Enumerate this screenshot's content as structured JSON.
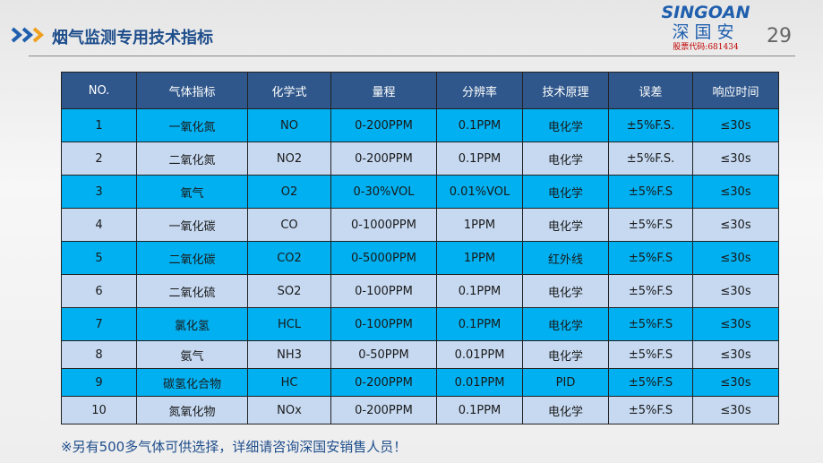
{
  "header": {
    "title": "烟气监测专用技术指标",
    "page_number": "29"
  },
  "logo": {
    "en": "SINGOAN",
    "cn": "深国安",
    "stock": "股票代码:681434"
  },
  "colors": {
    "header_bg": "#2f578b",
    "row_odd": "#00b0f0",
    "row_even": "#c6d9f1"
  },
  "table": {
    "columns": [
      "NO.",
      "气体指标",
      "化学式",
      "量程",
      "分辨率",
      "技术原理",
      "误差",
      "响应时间"
    ],
    "rows": [
      [
        "1",
        "一氧化氮",
        "NO",
        "0-200PPM",
        "0.1PPM",
        "电化学",
        "±5%F.S.",
        "≤30s"
      ],
      [
        "2",
        "二氧化氮",
        "NO2",
        "0-200PPM",
        "0.1PPM",
        "电化学",
        "±5%F.S.",
        "≤30s"
      ],
      [
        "3",
        "氧气",
        "O2",
        "0-30%VOL",
        "0.01%VOL",
        "电化学",
        "±5%F.S",
        "≤30s"
      ],
      [
        "4",
        "一氧化碳",
        "CO",
        "0-1000PPM",
        "1PPM",
        "电化学",
        "±5%F.S",
        "≤30s"
      ],
      [
        "5",
        "二氧化碳",
        "CO2",
        "0-5000PPM",
        "1PPM",
        "红外线",
        "±5%F.S",
        "≤30s"
      ],
      [
        "6",
        "二氧化硫",
        "SO2",
        "0-100PPM",
        "0.1PPM",
        "电化学",
        "±5%F.S",
        "≤30s"
      ],
      [
        "7",
        "氯化氢",
        "HCL",
        "0-100PPM",
        "0.1PPM",
        "电化学",
        "±5%F.S",
        "≤30s"
      ],
      [
        "8",
        "氨气",
        "NH3",
        "0-50PPM",
        "0.01PPM",
        "电化学",
        "±5%F.S",
        "≤30s"
      ],
      [
        "9",
        "碳氢化合物",
        "HC",
        "0-200PPM",
        "0.01PPM",
        "PID",
        "±5%F.S",
        "≤30s"
      ],
      [
        "10",
        "氮氧化物",
        "NOx",
        "0-200PPM",
        "0.1PPM",
        "电化学",
        "±5%F.S",
        "≤30s"
      ]
    ]
  },
  "footer_note": "※另有500多气体可供选择，详细请咨询深国安销售人员！"
}
